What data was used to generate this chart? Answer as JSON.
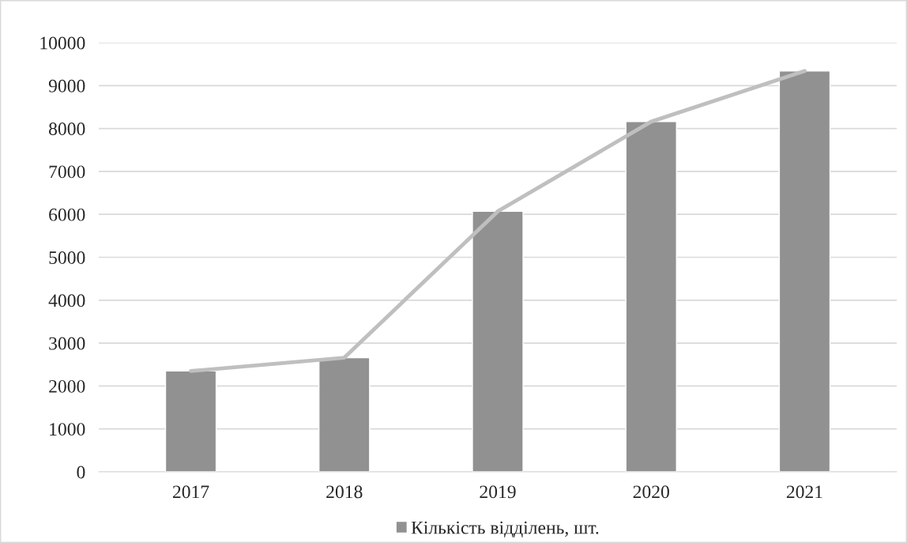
{
  "chart_data": {
    "type": "bar",
    "categories": [
      "2017",
      "2018",
      "2019",
      "2020",
      "2021"
    ],
    "series": [
      {
        "name": "Кількість відділень, шт.",
        "color": "#919191",
        "values": [
          2350,
          2660,
          6070,
          8160,
          9340
        ]
      },
      {
        "type": "line",
        "color": "#bfbfbf",
        "values": [
          2350,
          2660,
          6070,
          8160,
          9340
        ]
      }
    ],
    "ylim": [
      0,
      10000
    ],
    "yticks": [
      0,
      1000,
      2000,
      3000,
      4000,
      5000,
      6000,
      7000,
      8000,
      9000,
      10000
    ],
    "grid": "y",
    "legend": "bottom",
    "marker": "none",
    "line_style": "solid"
  }
}
